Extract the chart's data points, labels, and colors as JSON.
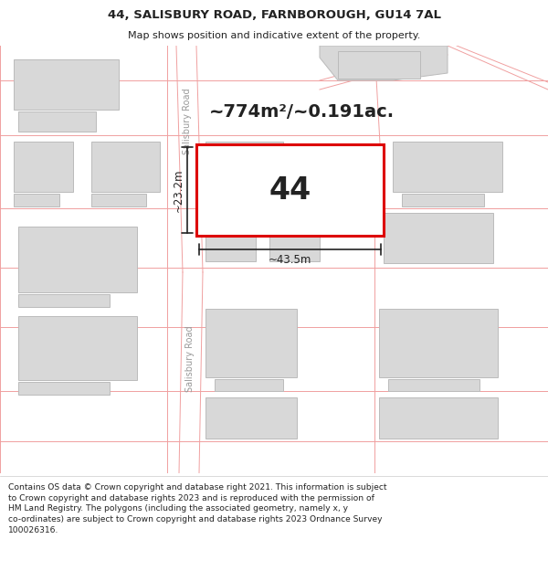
{
  "title": "44, SALISBURY ROAD, FARNBOROUGH, GU14 7AL",
  "subtitle": "Map shows position and indicative extent of the property.",
  "footer_lines": [
    "Contains OS data © Crown copyright and database right 2021. This information is subject to Crown copyright and database rights 2023 and is reproduced with the permission of",
    "HM Land Registry. The polygons (including the associated geometry, namely x, y co-ordinates) are subject to Crown copyright and database rights 2023 Ordnance Survey",
    "100026316."
  ],
  "map_bg": "#ffffff",
  "road_fill": "#f9f0f0",
  "road_line_color": "#f0a0a0",
  "building_fill": "#d8d8d8",
  "building_edge": "#bbbbbb",
  "highlight_fill": "#ffffff",
  "highlight_edge": "#dd0000",
  "highlight_lw": 2.2,
  "dim_color": "#222222",
  "text_color": "#222222",
  "road_label_color": "#999999",
  "area_text": "~774m²/~0.191ac.",
  "number_text": "44",
  "dim_width_text": "~43.5m",
  "dim_height_text": "~23.2m",
  "salisbury_road_label": "Salisbury Road",
  "figsize": [
    6.0,
    6.25
  ],
  "dpi": 100
}
